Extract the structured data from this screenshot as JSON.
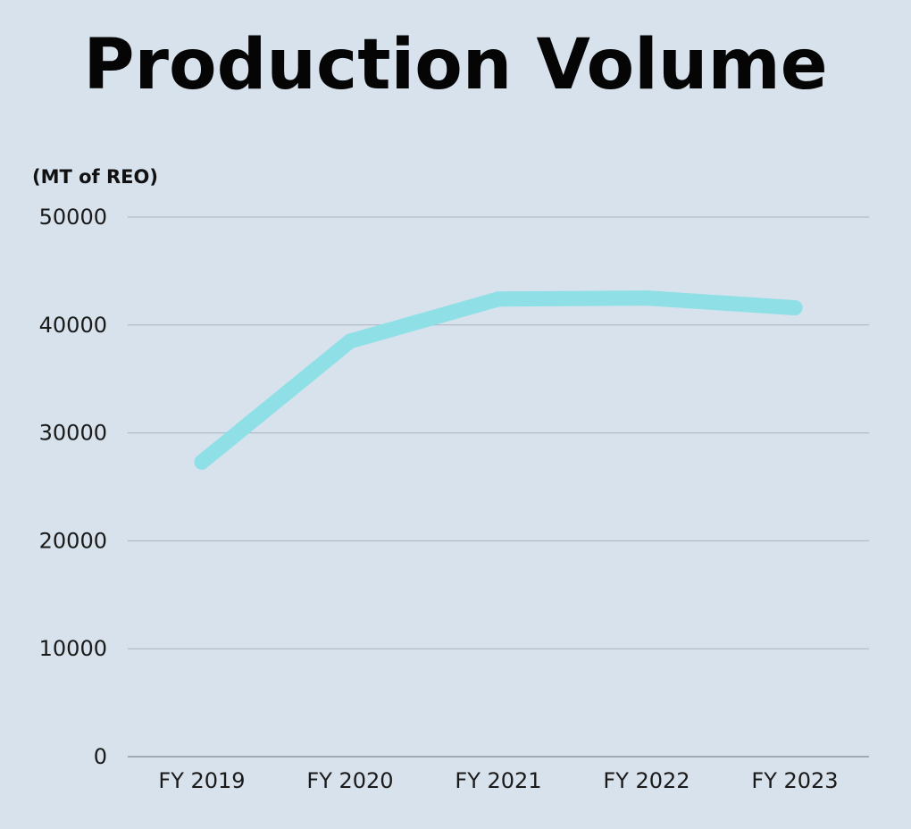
{
  "chart_data": {
    "type": "line",
    "title": "Production Volume",
    "ylabel": "(MT of REO)",
    "xlabel": "",
    "categories": [
      "FY 2019",
      "FY 2020",
      "FY 2021",
      "FY 2022",
      "FY 2023"
    ],
    "series": [
      {
        "values": [
          27300,
          38500,
          42400,
          42500,
          41600
        ],
        "color": "#8fe0e6"
      }
    ],
    "ylim": [
      0,
      50000
    ],
    "yticks": [
      "0",
      "10000",
      "20000",
      "30000",
      "40000",
      "50000"
    ],
    "grid": true,
    "legend": "none"
  },
  "colors": {
    "background": "#d7e2ec",
    "gridline": "#a9b4bf",
    "axis": "#7f8a95"
  }
}
